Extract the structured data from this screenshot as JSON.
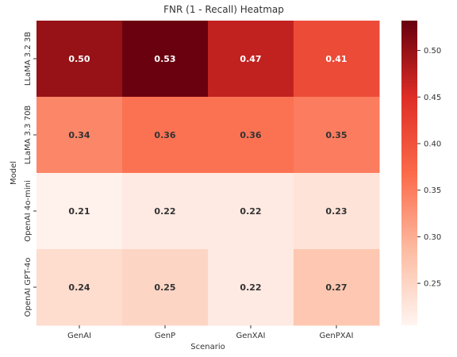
{
  "chart_data": {
    "type": "heatmap",
    "title": "FNR (1 - Recall) Heatmap",
    "xlabel": "Scenario",
    "ylabel": "Model",
    "x_categories": [
      "GenAI",
      "GenP",
      "GenXAI",
      "GenPXAI"
    ],
    "y_categories": [
      "LLaMA 3.2 3B",
      "LLaMA 3.3 70B",
      "OpenAI 4o-mini",
      "OpenAI GPT-4o"
    ],
    "values": [
      [
        0.5,
        0.53,
        0.47,
        0.41
      ],
      [
        0.34,
        0.36,
        0.36,
        0.35
      ],
      [
        0.21,
        0.22,
        0.22,
        0.23
      ],
      [
        0.24,
        0.25,
        0.22,
        0.27
      ]
    ],
    "value_labels": [
      [
        "0.50",
        "0.53",
        "0.47",
        "0.41"
      ],
      [
        "0.34",
        "0.36",
        "0.36",
        "0.35"
      ],
      [
        "0.21",
        "0.22",
        "0.22",
        "0.23"
      ],
      [
        "0.24",
        "0.25",
        "0.22",
        "0.27"
      ]
    ],
    "colorbar": {
      "min": 0.205,
      "max": 0.532,
      "ticks": [
        0.25,
        0.3,
        0.35,
        0.4,
        0.45,
        0.5
      ],
      "tick_labels": [
        "0.25",
        "0.30",
        "0.35",
        "0.40",
        "0.45",
        "0.50"
      ]
    },
    "colormap": "Reds",
    "colormap_stops": [
      "#fff5f0",
      "#fcbba1",
      "#fb6a4a",
      "#de2d26",
      "#67000d"
    ],
    "legend": "colorbar-right"
  }
}
